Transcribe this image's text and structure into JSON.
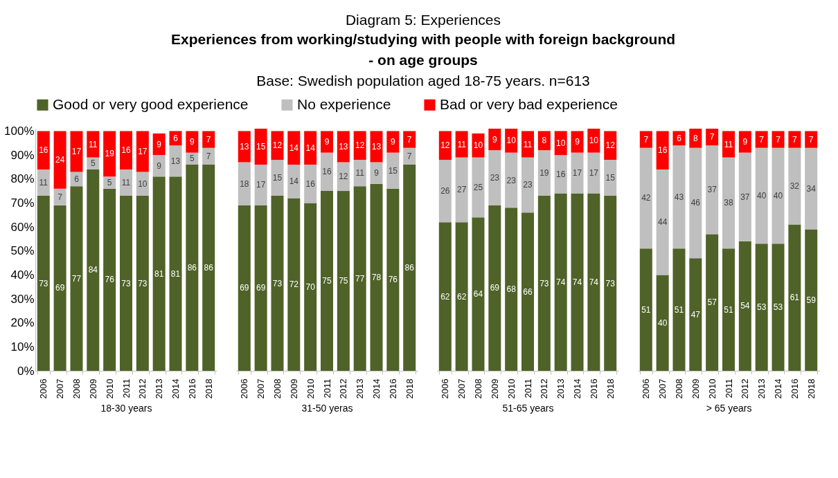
{
  "chart_data": [
    {
      "type": "other",
      "title": "Experiences from working/studying with people with foreign background - on age groups",
      "subtitle": "Base: Swedish population aged 18-75 years. n=613",
      "annotations": [
        "Diagram 5: Experiences"
      ]
    },
    {
      "type": "bar",
      "stacked": true,
      "xlabel": "18-30 years",
      "legend": "top",
      "data_labels": true,
      "grid": false,
      "categories": [
        "2006",
        "2007",
        "2008",
        "2009",
        "2010",
        "2011",
        "2012",
        "2013",
        "2014",
        "2016",
        "2018"
      ],
      "ylim": [
        0,
        101
      ],
      "yticks": [
        {
          "value": 0,
          "label": "0%"
        },
        {
          "value": 10,
          "label": "10%"
        },
        {
          "value": 20,
          "label": "20%"
        },
        {
          "value": 30,
          "label": "30%"
        },
        {
          "value": 40,
          "label": "40%"
        },
        {
          "value": 50,
          "label": "50%"
        },
        {
          "value": 60,
          "label": "60%"
        },
        {
          "value": 70,
          "label": "70%"
        },
        {
          "value": 80,
          "label": "80%"
        },
        {
          "value": 90,
          "label": "90%"
        },
        {
          "value": 100,
          "label": "100%"
        }
      ],
      "series": [
        {
          "name": "Good or very good experience",
          "color": "#4f6228",
          "values": [
            73,
            69,
            77,
            84,
            76,
            73,
            73,
            81,
            81,
            86,
            86
          ]
        },
        {
          "name": "No experience",
          "color": "#bfbfbf",
          "values": [
            11,
            7,
            6,
            5,
            5,
            11,
            10,
            9,
            13,
            5,
            7
          ]
        },
        {
          "name": "Bad or very bad experience",
          "color": "#ff0000",
          "values": [
            16,
            24,
            17,
            11,
            19,
            16,
            17,
            9,
            6,
            9,
            7
          ]
        }
      ]
    },
    {
      "type": "bar",
      "stacked": true,
      "xlabel": "31-50 yeras",
      "data_labels": true,
      "grid": false,
      "tick_labels": "x",
      "categories": [
        "2006",
        "2007",
        "2008",
        "2009",
        "2010",
        "2011",
        "2012",
        "2013",
        "2014",
        "2016",
        "2018"
      ],
      "ylim": [
        0,
        101
      ],
      "series": [
        {
          "color": "#4f6228",
          "values": [
            69,
            69,
            73,
            72,
            70,
            75,
            75,
            77,
            78,
            76,
            86
          ]
        },
        {
          "color": "#bfbfbf",
          "values": [
            18,
            17,
            15,
            14,
            16,
            16,
            12,
            11,
            9,
            15,
            7
          ]
        },
        {
          "color": "#ff0000",
          "values": [
            13,
            15,
            12,
            14,
            14,
            9,
            13,
            12,
            13,
            9,
            7
          ]
        }
      ]
    },
    {
      "type": "bar",
      "stacked": true,
      "xlabel": "51-65 years",
      "data_labels": true,
      "grid": false,
      "tick_labels": "x",
      "categories": [
        "2006",
        "2007",
        "2008",
        "2009",
        "2010",
        "2011",
        "2012",
        "2013",
        "2014",
        "2016",
        "2018"
      ],
      "ylim": [
        0,
        101
      ],
      "series": [
        {
          "color": "#4f6228",
          "values": [
            62,
            62,
            64,
            69,
            68,
            66,
            73,
            74,
            74,
            74,
            73
          ]
        },
        {
          "color": "#bfbfbf",
          "values": [
            26,
            27,
            25,
            23,
            23,
            23,
            19,
            16,
            17,
            17,
            15
          ]
        },
        {
          "color": "#ff0000",
          "values": [
            12,
            11,
            10,
            9,
            10,
            11,
            8,
            10,
            9,
            10,
            12
          ]
        }
      ]
    },
    {
      "type": "bar",
      "stacked": true,
      "xlabel": "> 65 years",
      "data_labels": true,
      "grid": false,
      "tick_labels": "x",
      "categories": [
        "2006",
        "2007",
        "2008",
        "2009",
        "2010",
        "2011",
        "2012",
        "2013",
        "2014",
        "2016",
        "2018"
      ],
      "ylim": [
        0,
        101
      ],
      "series": [
        {
          "color": "#4f6228",
          "values": [
            51,
            40,
            51,
            47,
            57,
            51,
            54,
            53,
            53,
            61,
            59
          ]
        },
        {
          "color": "#bfbfbf",
          "values": [
            42,
            44,
            43,
            46,
            37,
            38,
            37,
            40,
            40,
            32,
            34
          ]
        },
        {
          "color": "#ff0000",
          "values": [
            7,
            16,
            6,
            8,
            7,
            11,
            9,
            7,
            7,
            7,
            7
          ]
        }
      ]
    }
  ]
}
